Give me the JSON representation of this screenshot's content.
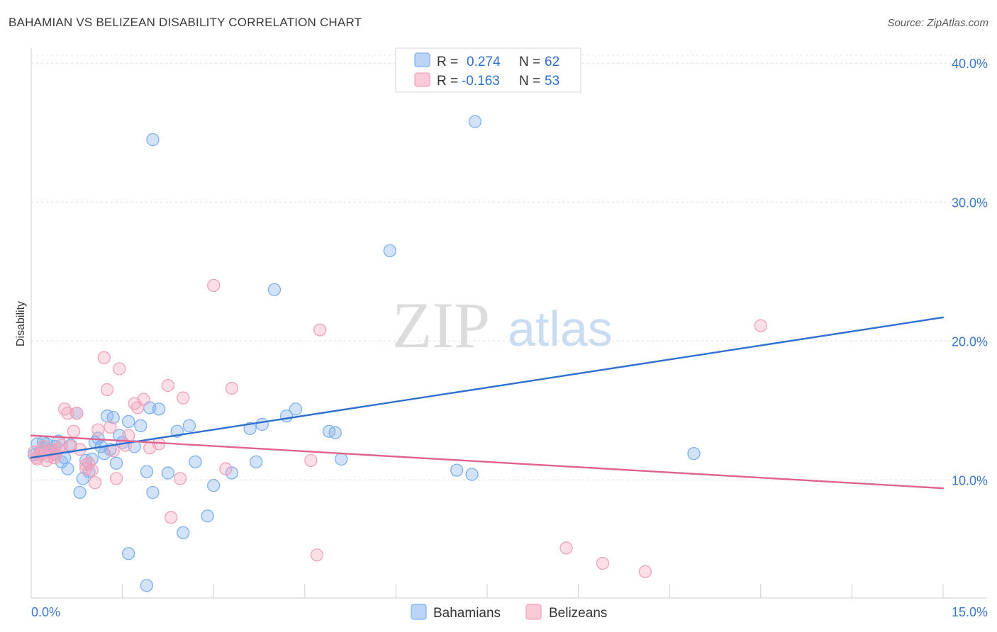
{
  "title": "BAHAMIAN VS BELIZEAN DISABILITY CORRELATION CHART",
  "source": "Source: ZipAtlas.com",
  "watermark": {
    "zip": "ZIP",
    "atlas": "atlas"
  },
  "legend_top": {
    "rows": [
      {
        "r_label": "R =",
        "r_value": "0.274",
        "n_label": "N =",
        "n_value": "62",
        "color": "#7fb0ec"
      },
      {
        "r_label": "R =",
        "r_value": "-0.163",
        "n_label": "N =",
        "n_value": "53",
        "color": "#f0a2b9"
      }
    ]
  },
  "legend_bottom": {
    "items": [
      {
        "label": "Bahamians",
        "color": "#7fb0ec"
      },
      {
        "label": "Belizeans",
        "color": "#f0a2b9"
      }
    ]
  },
  "chart_data": {
    "type": "scatter",
    "title": "BAHAMIAN VS BELIZEAN DISABILITY CORRELATION CHART",
    "xlabel": "",
    "ylabel": "Disability",
    "xlim": [
      0,
      15
    ],
    "ylim": [
      1.5,
      42
    ],
    "x_tick_labels": [
      {
        "value": 0,
        "label": "0.0%"
      },
      {
        "value": 15,
        "label": "15.0%"
      }
    ],
    "y_tick_labels": [
      {
        "value": 10,
        "label": "10.0%"
      },
      {
        "value": 20,
        "label": "20.0%"
      },
      {
        "value": 30,
        "label": "30.0%"
      },
      {
        "value": 40,
        "label": "40.0%"
      }
    ],
    "grid": "horizontal dashed",
    "legend_position": "top-center",
    "series": [
      {
        "name": "Bahamians",
        "color": "#7fb0ec",
        "line_color": "#2f6fcf",
        "trend": {
          "x": [
            0,
            15
          ],
          "y": [
            11.6,
            21.7
          ]
        },
        "points": [
          [
            0.05,
            11.8
          ],
          [
            0.1,
            12.6
          ],
          [
            0.15,
            12.0
          ],
          [
            0.2,
            12.4
          ],
          [
            0.25,
            12.6
          ],
          [
            0.3,
            12.1
          ],
          [
            0.35,
            11.9
          ],
          [
            0.4,
            12.4
          ],
          [
            0.45,
            12.8
          ],
          [
            0.5,
            11.3
          ],
          [
            0.55,
            11.6
          ],
          [
            0.6,
            10.8
          ],
          [
            0.65,
            12.5
          ],
          [
            0.75,
            14.8
          ],
          [
            0.8,
            9.1
          ],
          [
            0.85,
            10.1
          ],
          [
            0.9,
            11.4
          ],
          [
            0.95,
            10.6
          ],
          [
            1.0,
            11.5
          ],
          [
            1.05,
            12.7
          ],
          [
            1.1,
            13.0
          ],
          [
            1.15,
            12.4
          ],
          [
            1.2,
            11.9
          ],
          [
            1.25,
            14.6
          ],
          [
            1.3,
            12.2
          ],
          [
            1.35,
            14.5
          ],
          [
            1.4,
            11.2
          ],
          [
            1.45,
            13.2
          ],
          [
            1.5,
            12.7
          ],
          [
            1.6,
            14.2
          ],
          [
            1.7,
            12.4
          ],
          [
            1.8,
            13.9
          ],
          [
            1.9,
            10.6
          ],
          [
            1.95,
            15.2
          ],
          [
            2.0,
            9.1
          ],
          [
            2.1,
            15.1
          ],
          [
            2.25,
            10.5
          ],
          [
            2.4,
            13.5
          ],
          [
            2.5,
            6.2
          ],
          [
            2.6,
            13.9
          ],
          [
            2.7,
            11.3
          ],
          [
            2.9,
            7.4
          ],
          [
            3.0,
            9.6
          ],
          [
            3.3,
            10.5
          ],
          [
            3.6,
            13.7
          ],
          [
            3.7,
            11.3
          ],
          [
            3.8,
            14.0
          ],
          [
            4.2,
            14.6
          ],
          [
            4.35,
            15.1
          ],
          [
            4.9,
            13.5
          ],
          [
            5.0,
            13.4
          ],
          [
            5.1,
            11.5
          ],
          [
            1.6,
            4.7
          ],
          [
            1.9,
            2.4
          ],
          [
            2.0,
            34.5
          ],
          [
            4.0,
            23.7
          ],
          [
            5.9,
            26.5
          ],
          [
            7.3,
            35.8
          ],
          [
            7.0,
            10.7
          ],
          [
            7.25,
            10.4
          ],
          [
            10.9,
            11.9
          ],
          [
            0.2,
            12.7
          ]
        ]
      },
      {
        "name": "Belizeans",
        "color": "#f0a2b9",
        "line_color": "#e0628f",
        "trend": {
          "x": [
            0,
            15
          ],
          "y": [
            13.2,
            9.4
          ]
        },
        "points": [
          [
            0.05,
            12.0
          ],
          [
            0.1,
            11.5
          ],
          [
            0.15,
            11.8
          ],
          [
            0.2,
            12.4
          ],
          [
            0.25,
            11.4
          ],
          [
            0.3,
            11.7
          ],
          [
            0.35,
            12.2
          ],
          [
            0.4,
            11.8
          ],
          [
            0.45,
            12.2
          ],
          [
            0.5,
            12.5
          ],
          [
            0.55,
            15.1
          ],
          [
            0.6,
            14.8
          ],
          [
            0.65,
            12.4
          ],
          [
            0.7,
            13.5
          ],
          [
            0.75,
            14.8
          ],
          [
            0.8,
            12.2
          ],
          [
            0.9,
            10.8
          ],
          [
            0.95,
            11.2
          ],
          [
            1.0,
            10.7
          ],
          [
            1.05,
            9.8
          ],
          [
            1.1,
            13.6
          ],
          [
            1.2,
            18.8
          ],
          [
            1.25,
            16.5
          ],
          [
            1.3,
            13.8
          ],
          [
            1.35,
            12.1
          ],
          [
            1.4,
            10.1
          ],
          [
            1.45,
            18.0
          ],
          [
            1.55,
            12.5
          ],
          [
            1.6,
            13.2
          ],
          [
            1.7,
            15.5
          ],
          [
            1.75,
            15.2
          ],
          [
            1.85,
            15.8
          ],
          [
            1.95,
            12.3
          ],
          [
            2.1,
            12.6
          ],
          [
            2.25,
            16.8
          ],
          [
            2.3,
            7.3
          ],
          [
            2.45,
            10.1
          ],
          [
            2.5,
            15.9
          ],
          [
            3.0,
            24.0
          ],
          [
            3.2,
            10.8
          ],
          [
            3.3,
            16.6
          ],
          [
            4.6,
            11.4
          ],
          [
            4.75,
            20.8
          ],
          [
            4.7,
            4.6
          ],
          [
            8.8,
            5.1
          ],
          [
            9.4,
            4.0
          ],
          [
            10.1,
            3.4
          ],
          [
            12.0,
            21.1
          ],
          [
            0.08,
            11.6
          ],
          [
            0.18,
            12.1
          ],
          [
            0.28,
            12.0
          ],
          [
            0.38,
            11.6
          ],
          [
            0.9,
            11.1
          ]
        ]
      }
    ]
  }
}
